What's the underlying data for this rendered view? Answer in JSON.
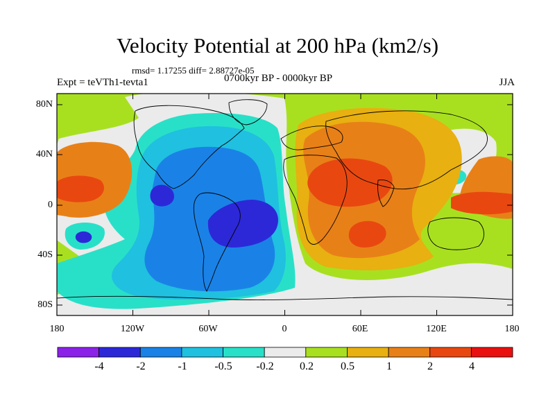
{
  "title": "Velocity Potential at 200 hPa (km2/s)",
  "stats": "rmsd= 1.17255 diff= 2.88727e-05",
  "subtitle": "0700kyr BP - 0000kyr BP",
  "expt": "Expt = teVTh1-tevta1",
  "season": "JJA",
  "lat_labels": [
    "80N",
    "40N",
    "0",
    "40S",
    "80S"
  ],
  "lon_labels": [
    "180",
    "120W",
    "60W",
    "0",
    "60E",
    "120E",
    "180"
  ],
  "colorbar": {
    "labels": [
      "-4",
      "-2",
      "-1",
      "-0.5",
      "-0.2",
      "0.2",
      "0.5",
      "1",
      "2",
      "4"
    ],
    "colors": [
      "#8b22e8",
      "#2c28d8",
      "#1a82e6",
      "#20c0e0",
      "#28e0c8",
      "#ebebeb",
      "#a8e020",
      "#e8b010",
      "#e88018",
      "#e84810",
      "#e81010"
    ]
  },
  "palette": {
    "bg_green": "#a8e020",
    "neutral": "#ebebeb",
    "neg_light": "#28e0c8",
    "neg_mid": "#20c0e0",
    "neg_deep": "#1a82e6",
    "neg_core": "#2c28d8",
    "pos_light": "#e8b010",
    "pos_mid": "#e88018",
    "pos_core": "#e84810"
  }
}
